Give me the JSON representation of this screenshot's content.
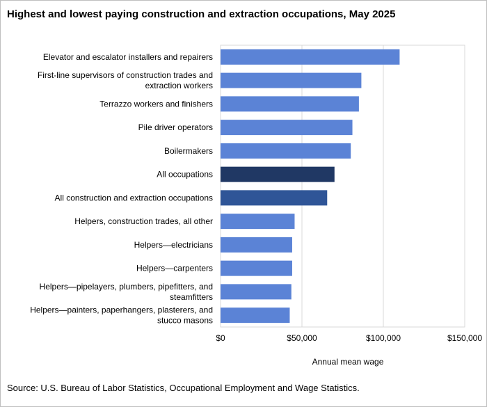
{
  "title": "Highest and lowest paying construction and extraction occupations, May 2025",
  "source": "Source: U.S. Bureau of Labor Statistics, Occupational Employment and Wage Statistics.",
  "chart_data": {
    "type": "bar",
    "orientation": "horizontal",
    "title": "Highest and lowest paying construction and extraction occupations, May 2025",
    "xlabel": "Annual mean wage",
    "ylabel": "",
    "xlim": [
      0,
      150000
    ],
    "x_ticks": [
      "$0",
      "$50,000",
      "$100,000",
      "$150,000"
    ],
    "x_tick_values": [
      0,
      50000,
      100000,
      150000
    ],
    "grid": true,
    "categories": [
      [
        "Elevator and escalator installers and repairers"
      ],
      [
        "First-line supervisors of construction trades and",
        "extraction workers"
      ],
      [
        "Terrazzo workers and finishers"
      ],
      [
        "Pile driver operators"
      ],
      [
        "Boilermakers"
      ],
      [
        "All occupations"
      ],
      [
        "All construction and extraction occupations"
      ],
      [
        "Helpers, construction trades, all other"
      ],
      [
        "Helpers—electricians"
      ],
      [
        "Helpers—carpenters"
      ],
      [
        "Helpers—pipelayers, plumbers, pipefitters, and",
        "steamfitters"
      ],
      [
        "Helpers—painters, paperhangers, plasterers, and",
        "stucco masons"
      ]
    ],
    "values": [
      110000,
      86500,
      85000,
      81000,
      80000,
      70000,
      65500,
      45500,
      44000,
      44000,
      43500,
      42500
    ],
    "colors": [
      "#5b83d6",
      "#5b83d6",
      "#5b83d6",
      "#5b83d6",
      "#5b83d6",
      "#203864",
      "#2f5597",
      "#5b83d6",
      "#5b83d6",
      "#5b83d6",
      "#5b83d6",
      "#5b83d6"
    ]
  }
}
